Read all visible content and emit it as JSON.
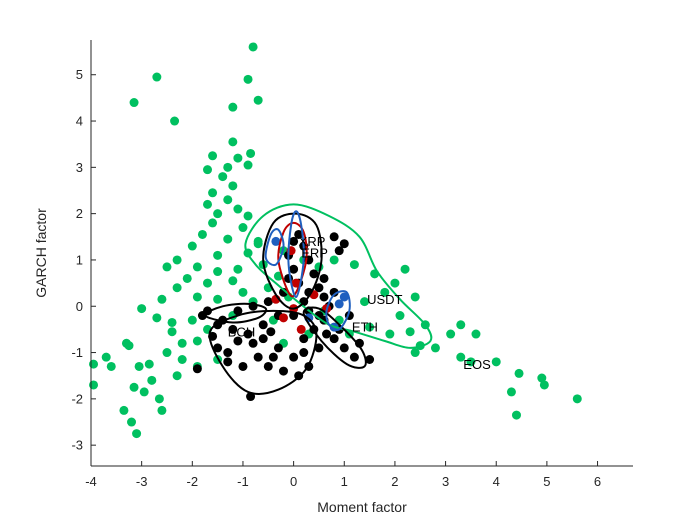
{
  "chart_data": {
    "type": "scatter",
    "title": "",
    "xlabel": "Moment factor",
    "ylabel": "GARCH factor",
    "xlim": [
      -4,
      6.7
    ],
    "ylim": [
      -3.45,
      5.75
    ],
    "xticks": [
      "-4",
      "-3",
      "-2",
      "-1",
      "0",
      "1",
      "2",
      "3",
      "4",
      "5",
      "6"
    ],
    "yticks": [
      "-3",
      "-2",
      "-1",
      "0",
      "1",
      "2",
      "3",
      "4",
      "5"
    ],
    "grid": false,
    "colors": {
      "green": "#00c060",
      "black": "#000000",
      "red": "#c00000",
      "blue": "#1f5fbf",
      "axis": "#262626"
    },
    "series": [
      {
        "name": "green",
        "color": "#00c060",
        "points": [
          [
            -0.8,
            5.6
          ],
          [
            -2.7,
            4.95
          ],
          [
            -0.9,
            4.9
          ],
          [
            -3.15,
            4.4
          ],
          [
            -0.7,
            4.45
          ],
          [
            -1.2,
            4.3
          ],
          [
            -2.35,
            4.0
          ],
          [
            -1.2,
            3.55
          ],
          [
            -1.6,
            3.25
          ],
          [
            -0.85,
            3.3
          ],
          [
            -1.1,
            3.2
          ],
          [
            -1.3,
            3.0
          ],
          [
            -0.9,
            3.05
          ],
          [
            -1.7,
            2.95
          ],
          [
            -1.4,
            2.8
          ],
          [
            -1.2,
            2.6
          ],
          [
            -1.6,
            2.45
          ],
          [
            -1.3,
            2.3
          ],
          [
            -1.7,
            2.2
          ],
          [
            -1.5,
            2.0
          ],
          [
            -1.1,
            2.1
          ],
          [
            -0.9,
            1.95
          ],
          [
            -1.6,
            1.8
          ],
          [
            -1.0,
            1.7
          ],
          [
            -1.8,
            1.55
          ],
          [
            -1.3,
            1.45
          ],
          [
            -0.7,
            1.35
          ],
          [
            -2.0,
            1.3
          ],
          [
            -1.5,
            1.1
          ],
          [
            -0.9,
            1.15
          ],
          [
            -2.3,
            1.0
          ],
          [
            -1.9,
            0.85
          ],
          [
            -1.5,
            0.75
          ],
          [
            -1.1,
            0.8
          ],
          [
            -2.5,
            0.85
          ],
          [
            -2.1,
            0.6
          ],
          [
            -1.7,
            0.5
          ],
          [
            -1.2,
            0.55
          ],
          [
            -2.3,
            0.4
          ],
          [
            -1.9,
            0.2
          ],
          [
            -1.5,
            0.15
          ],
          [
            -2.6,
            0.15
          ],
          [
            -3.0,
            -0.05
          ],
          [
            -2.7,
            -0.25
          ],
          [
            -2.4,
            -0.35
          ],
          [
            -2.0,
            -0.3
          ],
          [
            -1.7,
            -0.5
          ],
          [
            -2.4,
            -0.55
          ],
          [
            -2.2,
            -0.8
          ],
          [
            -1.9,
            -0.75
          ],
          [
            -2.5,
            -1.0
          ],
          [
            -2.2,
            -1.15
          ],
          [
            -1.9,
            -1.3
          ],
          [
            -1.5,
            -1.15
          ],
          [
            -2.3,
            -1.5
          ],
          [
            -3.3,
            -0.8
          ],
          [
            -3.25,
            -0.85
          ],
          [
            -3.7,
            -1.1
          ],
          [
            -3.6,
            -1.3
          ],
          [
            -3.05,
            -1.3
          ],
          [
            -2.85,
            -1.25
          ],
          [
            -2.8,
            -1.6
          ],
          [
            -3.15,
            -1.75
          ],
          [
            -2.95,
            -1.85
          ],
          [
            -2.65,
            -2.0
          ],
          [
            -3.35,
            -2.25
          ],
          [
            -2.6,
            -2.25
          ],
          [
            -3.2,
            -2.5
          ],
          [
            -3.1,
            -2.75
          ],
          [
            -3.95,
            -1.25
          ],
          [
            -3.95,
            -1.7
          ],
          [
            -1.2,
            -0.2
          ],
          [
            -0.8,
            0.1
          ],
          [
            -0.5,
            0.4
          ],
          [
            -0.3,
            0.65
          ],
          [
            -0.6,
            0.9
          ],
          [
            -0.2,
            1.2
          ],
          [
            0.2,
            1.0
          ],
          [
            0.5,
            0.85
          ],
          [
            0.8,
            1.0
          ],
          [
            1.2,
            0.9
          ],
          [
            1.6,
            0.7
          ],
          [
            2.0,
            0.5
          ],
          [
            2.2,
            0.8
          ],
          [
            1.8,
            0.3
          ],
          [
            1.4,
            0.1
          ],
          [
            2.4,
            0.2
          ],
          [
            2.1,
            -0.2
          ],
          [
            2.6,
            -0.4
          ],
          [
            2.3,
            -0.55
          ],
          [
            1.9,
            -0.6
          ],
          [
            1.5,
            -0.45
          ],
          [
            1.1,
            -0.6
          ],
          [
            2.8,
            -0.9
          ],
          [
            2.5,
            -0.85
          ],
          [
            3.1,
            -0.6
          ],
          [
            3.3,
            -0.4
          ],
          [
            3.6,
            -0.6
          ],
          [
            3.3,
            -1.1
          ],
          [
            3.5,
            -1.2
          ],
          [
            4.0,
            -1.2
          ],
          [
            4.3,
            -1.85
          ],
          [
            4.45,
            -1.45
          ],
          [
            4.4,
            -2.35
          ],
          [
            4.9,
            -1.55
          ],
          [
            4.95,
            -1.7
          ],
          [
            5.6,
            -2.0
          ],
          [
            0.6,
            -0.1
          ],
          [
            0.9,
            -0.3
          ],
          [
            -0.1,
            0.2
          ],
          [
            -0.7,
            1.4
          ],
          [
            -1.0,
            0.3
          ],
          [
            -0.4,
            -0.3
          ],
          [
            0.3,
            -0.6
          ],
          [
            -0.2,
            -0.8
          ],
          [
            2.4,
            -1.0
          ]
        ]
      },
      {
        "name": "black",
        "color": "#000000",
        "points": [
          [
            -1.9,
            -1.35
          ],
          [
            -0.85,
            -1.95
          ],
          [
            -1.5,
            -0.9
          ],
          [
            -1.3,
            -1.2
          ],
          [
            -1.0,
            -1.3
          ],
          [
            -0.7,
            -1.1
          ],
          [
            -0.5,
            -1.3
          ],
          [
            -0.2,
            -1.4
          ],
          [
            0.1,
            -1.5
          ],
          [
            0.3,
            -1.3
          ],
          [
            0.0,
            -1.1
          ],
          [
            -0.3,
            -0.9
          ],
          [
            -0.6,
            -0.7
          ],
          [
            -0.9,
            -0.6
          ],
          [
            -1.2,
            -0.5
          ],
          [
            -1.5,
            -0.4
          ],
          [
            -1.7,
            -0.1
          ],
          [
            -1.8,
            -0.2
          ],
          [
            -1.6,
            -0.65
          ],
          [
            -1.4,
            -0.3
          ],
          [
            -1.1,
            -0.1
          ],
          [
            -0.8,
            0.0
          ],
          [
            -0.5,
            0.1
          ],
          [
            -0.2,
            0.3
          ],
          [
            0.1,
            0.5
          ],
          [
            0.0,
            0.8
          ],
          [
            -0.1,
            1.1
          ],
          [
            0.0,
            1.4
          ],
          [
            0.1,
            1.55
          ],
          [
            0.2,
            1.3
          ],
          [
            0.3,
            1.0
          ],
          [
            0.4,
            0.7
          ],
          [
            0.5,
            0.4
          ],
          [
            0.6,
            0.2
          ],
          [
            0.7,
            0.0
          ],
          [
            0.6,
            -0.3
          ],
          [
            0.4,
            -0.5
          ],
          [
            0.2,
            -0.7
          ],
          [
            0.5,
            -0.9
          ],
          [
            0.8,
            -0.7
          ],
          [
            1.0,
            -0.9
          ],
          [
            1.2,
            -1.1
          ],
          [
            1.5,
            -1.15
          ],
          [
            1.3,
            -0.8
          ],
          [
            0.9,
            -0.5
          ],
          [
            1.1,
            -0.2
          ],
          [
            0.8,
            0.3
          ],
          [
            0.6,
            0.6
          ],
          [
            0.9,
            1.2
          ],
          [
            0.8,
            1.5
          ],
          [
            1.0,
            1.35
          ],
          [
            0.2,
            0.1
          ],
          [
            -0.3,
            -0.2
          ],
          [
            -0.6,
            -0.4
          ],
          [
            0.0,
            -0.2
          ],
          [
            0.3,
            -0.1
          ],
          [
            0.5,
            -0.2
          ],
          [
            -0.8,
            -0.8
          ],
          [
            -1.1,
            -0.75
          ],
          [
            -0.4,
            -1.1
          ],
          [
            0.2,
            -1.0
          ],
          [
            -1.3,
            -1.0
          ],
          [
            -0.1,
            0.6
          ],
          [
            0.3,
            0.3
          ],
          [
            -0.45,
            -0.55
          ],
          [
            0.65,
            -0.6
          ]
        ]
      },
      {
        "name": "red",
        "color": "#c00000",
        "points": [
          [
            -0.35,
            0.15
          ],
          [
            0.0,
            -0.05
          ],
          [
            0.15,
            -0.5
          ],
          [
            0.65,
            -0.05
          ],
          [
            -0.2,
            -0.25
          ],
          [
            0.4,
            0.25
          ],
          [
            0.05,
            0.5
          ],
          [
            -0.05,
            1.2
          ]
        ]
      },
      {
        "name": "blue",
        "color": "#1f5fbf",
        "points": [
          [
            1.0,
            0.2
          ],
          [
            0.8,
            -0.45
          ],
          [
            0.3,
            -0.25
          ],
          [
            -0.35,
            1.4
          ],
          [
            0.9,
            0.05
          ]
        ]
      }
    ],
    "contours": [
      {
        "name": "green-envelope",
        "color": "#00c060",
        "points": [
          [
            -0.95,
            1.35
          ],
          [
            -0.6,
            1.95
          ],
          [
            0.0,
            2.2
          ],
          [
            0.7,
            1.95
          ],
          [
            1.3,
            1.5
          ],
          [
            1.65,
            0.75
          ],
          [
            2.1,
            0.15
          ],
          [
            2.6,
            -0.4
          ],
          [
            2.7,
            -0.75
          ],
          [
            2.3,
            -0.9
          ],
          [
            1.8,
            -0.75
          ],
          [
            1.2,
            -0.55
          ],
          [
            0.7,
            -0.4
          ],
          [
            0.25,
            -0.05
          ],
          [
            -0.3,
            0.45
          ],
          [
            -0.75,
            0.9
          ]
        ]
      },
      {
        "name": "black-contour-top",
        "color": "#000000",
        "points": [
          [
            -0.6,
            1.0
          ],
          [
            -0.4,
            1.8
          ],
          [
            0.05,
            2.0
          ],
          [
            0.45,
            1.75
          ],
          [
            0.55,
            1.0
          ],
          [
            0.35,
            0.3
          ],
          [
            0.0,
            -0.05
          ],
          [
            -0.35,
            0.25
          ]
        ]
      },
      {
        "name": "black-contour-left",
        "color": "#000000",
        "points": [
          [
            -1.65,
            -0.55
          ],
          [
            -1.4,
            -1.3
          ],
          [
            -0.9,
            -1.85
          ],
          [
            -0.3,
            -1.8
          ],
          [
            0.25,
            -1.35
          ],
          [
            0.45,
            -0.6
          ],
          [
            0.2,
            -0.2
          ],
          [
            -0.4,
            -0.1
          ],
          [
            -1.1,
            -0.2
          ]
        ]
      },
      {
        "name": "black-contour-bottom-right",
        "color": "#000000",
        "points": [
          [
            0.2,
            -0.15
          ],
          [
            0.55,
            -0.75
          ],
          [
            1.05,
            -1.25
          ],
          [
            1.4,
            -1.3
          ],
          [
            1.35,
            -0.95
          ],
          [
            0.95,
            -0.45
          ],
          [
            0.5,
            -0.05
          ]
        ]
      },
      {
        "name": "black-contour-small-left",
        "color": "#000000",
        "points": [
          [
            -1.75,
            -0.2
          ],
          [
            -1.2,
            -0.35
          ],
          [
            -0.7,
            -0.25
          ],
          [
            -0.55,
            -0.05
          ],
          [
            -0.9,
            0.05
          ],
          [
            -1.4,
            0.0
          ]
        ]
      },
      {
        "name": "red-contour",
        "color": "#c00000",
        "points": [
          [
            -0.3,
            1.0
          ],
          [
            -0.2,
            1.6
          ],
          [
            0.0,
            1.8
          ],
          [
            0.2,
            1.6
          ],
          [
            0.25,
            1.0
          ],
          [
            0.05,
            0.3
          ],
          [
            -0.1,
            0.3
          ]
        ]
      },
      {
        "name": "blue-contour-1",
        "color": "#1f5fbf",
        "points": [
          [
            -0.1,
            0.9
          ],
          [
            -0.05,
            1.75
          ],
          [
            0.05,
            2.05
          ],
          [
            0.15,
            1.75
          ],
          [
            0.2,
            1.0
          ],
          [
            0.05,
            0.2
          ]
        ]
      },
      {
        "name": "blue-contour-2",
        "color": "#1f5fbf",
        "points": [
          [
            -0.55,
            1.05
          ],
          [
            -0.45,
            1.55
          ],
          [
            -0.3,
            1.65
          ],
          [
            -0.2,
            1.3
          ],
          [
            -0.35,
            0.9
          ]
        ]
      },
      {
        "name": "blue-contour-3",
        "color": "#1f5fbf",
        "points": [
          [
            0.65,
            -0.1
          ],
          [
            0.8,
            0.25
          ],
          [
            1.05,
            0.3
          ],
          [
            1.1,
            -0.1
          ],
          [
            0.9,
            -0.5
          ],
          [
            0.7,
            -0.4
          ]
        ]
      }
    ],
    "annotations": [
      {
        "text": "XRP",
        "x": 0.1,
        "y": 1.3
      },
      {
        "text": "ERP",
        "x": 0.15,
        "y": 1.05
      },
      {
        "text": "USDT",
        "x": 1.45,
        "y": 0.05
      },
      {
        "text": "ETH",
        "x": 1.15,
        "y": -0.55
      },
      {
        "text": "BCH",
        "x": -1.3,
        "y": -0.65
      },
      {
        "text": "EOS",
        "x": 3.35,
        "y": -1.35
      }
    ]
  }
}
